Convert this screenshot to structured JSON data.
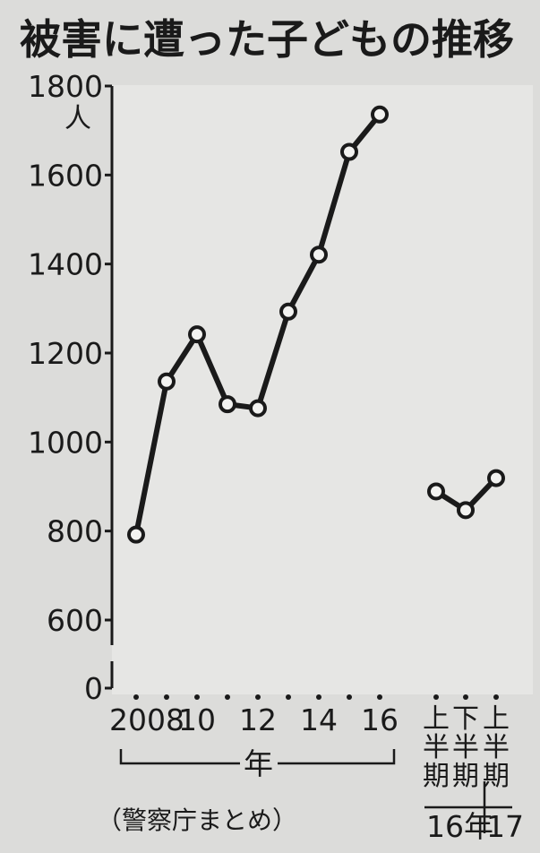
{
  "chart_data": {
    "type": "line",
    "title": "被害に遭った子どもの推移",
    "y_unit": "人",
    "ylim": [
      0,
      1800
    ],
    "y_ticks": [
      "0",
      "600",
      "800",
      "1000",
      "1200",
      "1400",
      "1600",
      "1800"
    ],
    "x_tick_labels": [
      "2008",
      "10",
      "12",
      "14",
      "16"
    ],
    "x_axis_label": "年",
    "source": "（警察庁まとめ）",
    "series": [
      {
        "x": [
          2008,
          2009,
          2010,
          2011,
          2012,
          2013,
          2014,
          2015,
          2016
        ],
        "values": [
          792,
          1136,
          1242,
          1085,
          1076,
          1293,
          1421,
          1652,
          1736
        ]
      },
      {
        "x": [
          "16年上半期",
          "16年下半期",
          "17年上半期"
        ],
        "values": [
          889,
          847,
          919
        ]
      }
    ],
    "half_year_labels": [
      "上半期",
      "下半期",
      "上半期"
    ],
    "half_year_groups": [
      "16年",
      "17"
    ],
    "colors": {
      "line": "#1a1a1a",
      "marker_fill": "#f2f2f0",
      "background": "#dcdcda",
      "plot_area": "#e6e6e4"
    }
  }
}
